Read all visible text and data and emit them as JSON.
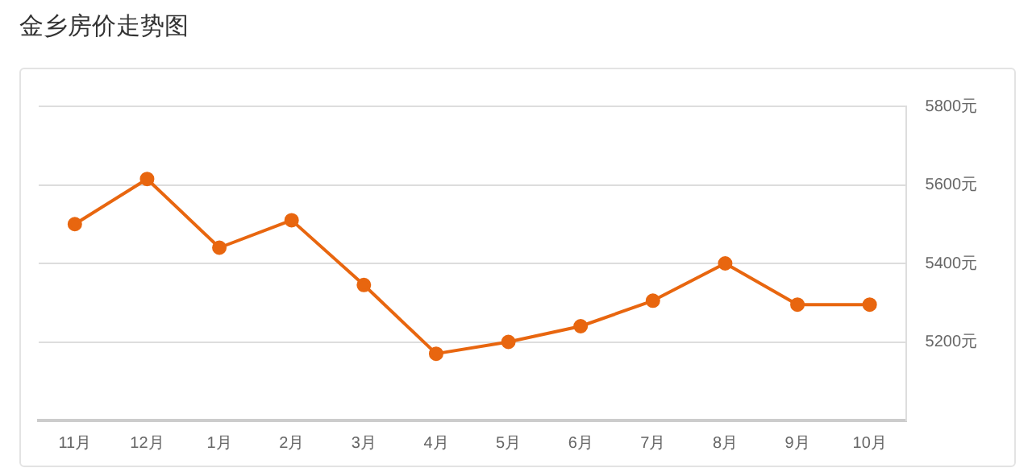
{
  "chart_data": {
    "type": "line",
    "title": "金乡房价走势图",
    "categories": [
      "11月",
      "12月",
      "1月",
      "2月",
      "3月",
      "4月",
      "5月",
      "6月",
      "7月",
      "8月",
      "9月",
      "10月"
    ],
    "series": [
      {
        "color": "#e8660f",
        "values": [
          5500,
          5615,
          5440,
          5510,
          5345,
          5170,
          5200,
          5240,
          5305,
          5400,
          5295,
          5295
        ]
      }
    ],
    "ylim": [
      5000,
      5800
    ],
    "yticks": [
      {
        "value": 5200,
        "label": "5200元"
      },
      {
        "value": 5400,
        "label": "5400元"
      },
      {
        "value": 5600,
        "label": "5600元"
      },
      {
        "value": 5800,
        "label": "5800元"
      }
    ],
    "grid": "y",
    "legend": false,
    "marker": "circle",
    "line_style": "solid"
  }
}
